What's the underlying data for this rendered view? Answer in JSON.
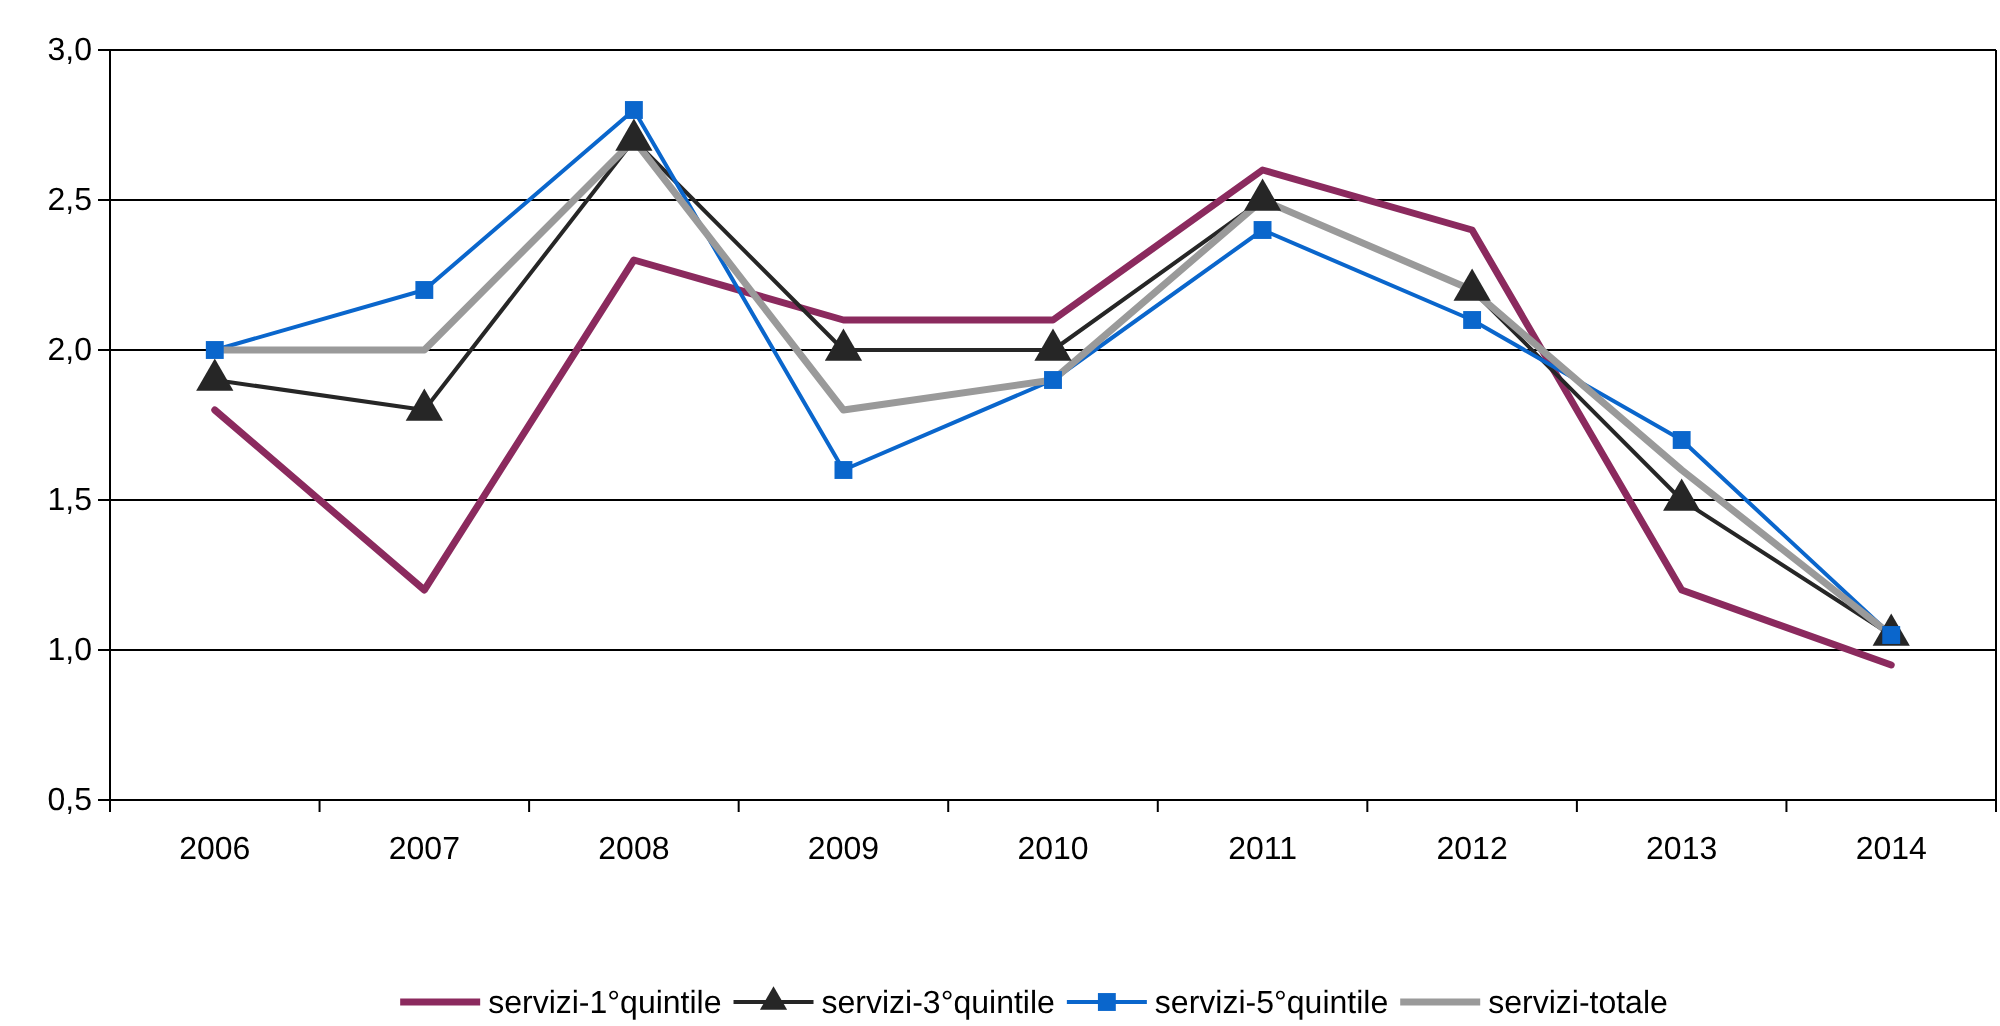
{
  "chart_data": {
    "type": "line",
    "categories": [
      "2006",
      "2007",
      "2008",
      "2009",
      "2010",
      "2011",
      "2012",
      "2013",
      "2014"
    ],
    "ylim": [
      0.5,
      3.0
    ],
    "yticks": [
      {
        "value": 0.5,
        "label": "0,5"
      },
      {
        "value": 1.0,
        "label": "1,0"
      },
      {
        "value": 1.5,
        "label": "1,5"
      },
      {
        "value": 2.0,
        "label": "2,0"
      },
      {
        "value": 2.5,
        "label": "2,5"
      },
      {
        "value": 3.0,
        "label": "3,0"
      }
    ],
    "grid": "y",
    "legend": "bottom",
    "series": [
      {
        "name": "servizi-1°quintile",
        "color": "#8b2a5e",
        "marker": "none",
        "values": [
          1.8,
          1.2,
          2.3,
          2.1,
          2.1,
          2.6,
          2.4,
          1.2,
          0.95
        ]
      },
      {
        "name": "servizi-3°quintile",
        "color": "#262626",
        "marker": "triangle",
        "values": [
          1.9,
          1.8,
          2.7,
          2.0,
          2.0,
          2.5,
          2.2,
          1.5,
          1.05
        ]
      },
      {
        "name": "servizi-5°quintile",
        "color": "#0a66cc",
        "marker": "square",
        "values": [
          2.0,
          2.2,
          2.8,
          1.6,
          1.9,
          2.4,
          2.1,
          1.7,
          1.05
        ]
      },
      {
        "name": "servizi-totale",
        "color": "#9a9a9a",
        "marker": "none",
        "values": [
          2.0,
          2.0,
          2.7,
          1.8,
          1.9,
          2.5,
          2.2,
          1.6,
          1.05
        ]
      }
    ]
  }
}
